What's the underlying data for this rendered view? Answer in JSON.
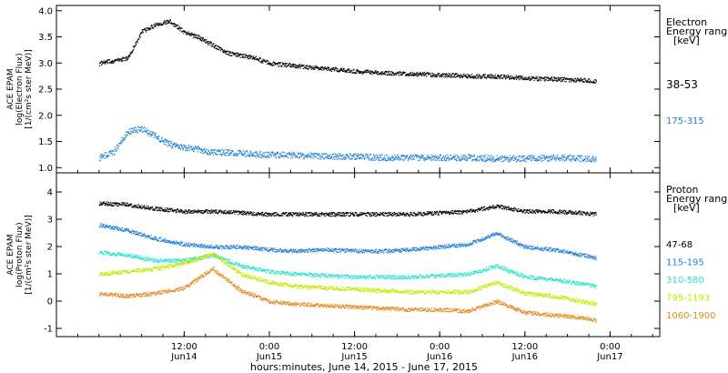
{
  "chart_data": [
    {
      "type": "scatter",
      "title": "",
      "ylabel_lines": [
        "ACE EPAM",
        "log(Electron Flux)",
        "[1/(cm²s ster MeV)]"
      ],
      "ylim": [
        0.9,
        4.1
      ],
      "yticks": [
        "1.0",
        "1.5",
        "2.0",
        "2.5",
        "3.0",
        "3.5",
        "4.0"
      ],
      "ytick_values": [
        1.0,
        1.5,
        2.0,
        2.5,
        3.0,
        3.5,
        4.0
      ],
      "legend_title_lines": [
        "Electron",
        "Energy ranges",
        "[keV]"
      ],
      "series": [
        {
          "name": "38-53",
          "color": "#000000",
          "x": [
            0,
            4,
            6,
            8,
            10,
            12,
            14,
            16,
            18,
            20,
            22,
            24,
            28,
            32,
            36,
            40,
            44,
            48,
            52,
            56,
            60,
            64,
            68,
            70
          ],
          "y": [
            3.0,
            3.1,
            3.6,
            3.75,
            3.8,
            3.6,
            3.5,
            3.35,
            3.2,
            3.15,
            3.1,
            3.0,
            2.95,
            2.9,
            2.85,
            2.82,
            2.8,
            2.78,
            2.76,
            2.75,
            2.72,
            2.7,
            2.68,
            2.65
          ]
        },
        {
          "name": "175-315",
          "color": "#1f7fd6",
          "x": [
            0,
            2,
            4,
            6,
            8,
            10,
            12,
            14,
            16,
            18,
            20,
            24,
            28,
            32,
            36,
            40,
            44,
            48,
            52,
            56,
            60,
            64,
            68,
            70
          ],
          "y": [
            1.2,
            1.3,
            1.7,
            1.75,
            1.6,
            1.45,
            1.4,
            1.35,
            1.3,
            1.3,
            1.28,
            1.25,
            1.25,
            1.22,
            1.22,
            1.2,
            1.2,
            1.2,
            1.2,
            1.18,
            1.18,
            1.2,
            1.18,
            1.17
          ]
        }
      ]
    },
    {
      "type": "scatter",
      "title": "",
      "ylabel_lines": [
        "ACE EPAM",
        "log(Proton Flux)",
        "[1/(cm²s ster MeV)]"
      ],
      "ylim": [
        -1.3,
        4.7
      ],
      "yticks": [
        "-1",
        "0",
        "1",
        "2",
        "3",
        "4"
      ],
      "ytick_values": [
        -1,
        0,
        1,
        2,
        3,
        4
      ],
      "legend_title_lines": [
        "Proton",
        "Energy ranges",
        "[keV]"
      ],
      "series": [
        {
          "name": "47-68",
          "color": "#000000",
          "x": [
            0,
            4,
            8,
            12,
            16,
            20,
            24,
            28,
            32,
            36,
            40,
            44,
            48,
            52,
            56,
            60,
            64,
            68,
            70
          ],
          "y": [
            3.6,
            3.55,
            3.4,
            3.3,
            3.3,
            3.25,
            3.2,
            3.2,
            3.2,
            3.2,
            3.2,
            3.2,
            3.25,
            3.3,
            3.5,
            3.3,
            3.3,
            3.25,
            3.2
          ]
        },
        {
          "name": "115-195",
          "color": "#1f7fd6",
          "x": [
            0,
            4,
            8,
            12,
            16,
            20,
            24,
            28,
            32,
            36,
            40,
            44,
            48,
            52,
            56,
            60,
            64,
            68,
            70
          ],
          "y": [
            2.8,
            2.6,
            2.3,
            2.1,
            2.0,
            2.0,
            1.9,
            1.85,
            1.9,
            1.85,
            1.85,
            1.9,
            2.0,
            2.1,
            2.5,
            2.0,
            1.9,
            1.7,
            1.6
          ]
        },
        {
          "name": "310-580",
          "color": "#2de0d0",
          "x": [
            0,
            4,
            8,
            12,
            16,
            20,
            24,
            28,
            32,
            36,
            40,
            44,
            48,
            52,
            56,
            60,
            64,
            68,
            70
          ],
          "y": [
            1.8,
            1.7,
            1.5,
            1.5,
            1.7,
            1.3,
            1.1,
            1.0,
            0.95,
            0.9,
            0.9,
            0.9,
            0.95,
            1.0,
            1.3,
            0.9,
            0.8,
            0.65,
            0.55
          ]
        },
        {
          "name": "795-1193",
          "color": "#c8e600",
          "x": [
            0,
            4,
            8,
            12,
            16,
            20,
            24,
            28,
            32,
            36,
            40,
            44,
            48,
            52,
            56,
            60,
            64,
            68,
            70
          ],
          "y": [
            1.0,
            1.1,
            1.2,
            1.4,
            1.75,
            1.0,
            0.7,
            0.55,
            0.5,
            0.45,
            0.4,
            0.35,
            0.35,
            0.35,
            0.7,
            0.3,
            0.2,
            0.0,
            -0.1
          ]
        },
        {
          "name": "1060-1900",
          "color": "#e08a1e",
          "x": [
            0,
            4,
            8,
            12,
            16,
            20,
            24,
            28,
            32,
            36,
            40,
            44,
            48,
            52,
            56,
            60,
            64,
            68,
            70
          ],
          "y": [
            0.3,
            0.2,
            0.3,
            0.5,
            1.2,
            0.4,
            0.0,
            -0.1,
            -0.15,
            -0.2,
            -0.25,
            -0.3,
            -0.3,
            -0.35,
            0.0,
            -0.4,
            -0.5,
            -0.6,
            -0.7
          ]
        }
      ]
    }
  ],
  "x_axis": {
    "xlim": [
      -6,
      79
    ],
    "ticks": [
      {
        "x": 12,
        "time": "12:00",
        "date": "Jun14"
      },
      {
        "x": 24,
        "time": "0:00",
        "date": "Jun15"
      },
      {
        "x": 36,
        "time": "12:00",
        "date": "Jun15"
      },
      {
        "x": 48,
        "time": "0:00",
        "date": "Jun16"
      },
      {
        "x": 60,
        "time": "12:00",
        "date": "Jun16"
      },
      {
        "x": 72,
        "time": "0:00",
        "date": "Jun17"
      }
    ],
    "xlabel": "hours:minutes, June 14, 2015 - June 17, 2015"
  }
}
